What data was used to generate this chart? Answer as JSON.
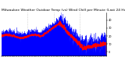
{
  "title": "Milwaukee Weather Outdoor Temp (vs) Wind Chill per Minute (Last 24 Hours)",
  "ylim": [
    -5,
    50
  ],
  "yticks": [
    0,
    10,
    20,
    30,
    40
  ],
  "background_color": "#ffffff",
  "plot_bg_color": "#ffffff",
  "line1_color": "#0000ff",
  "line2_color": "#ff0000",
  "grid_color": "#aaaaaa",
  "n_points": 1440,
  "title_fontsize": 3.2,
  "tick_fontsize": 2.5,
  "fig_width": 1.6,
  "fig_height": 0.87,
  "dpi": 100
}
